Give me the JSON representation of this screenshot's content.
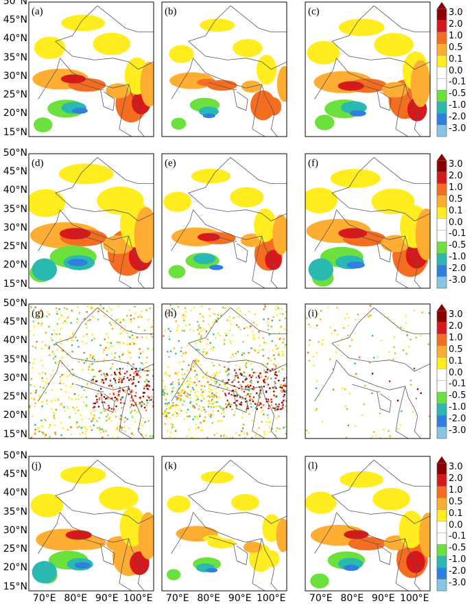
{
  "figure": {
    "y_tick_labels": [
      "50°N",
      "45°N",
      "40°N",
      "35°N",
      "30°N",
      "25°N",
      "20°N",
      "15°N"
    ],
    "x_tick_labels": [
      "70°E",
      "80°E",
      "90°E",
      "100°E"
    ],
    "colorbar_labels": [
      "3.0",
      "2.0",
      "1.0",
      "0.5",
      "0.1",
      "0.0",
      "-0.1",
      "-0.5",
      "-1.0",
      "-2.0",
      "-3.0"
    ],
    "colors": {
      "levels": [
        "#8b0000",
        "#d7191c",
        "#f46d20",
        "#fdae32",
        "#ffed20",
        "#ffffff",
        "#ffffff",
        "#6ce03c",
        "#2ab9b0",
        "#2f7fe0",
        "#86c5e6"
      ],
      "extend_top": "#8b0000",
      "country_border": "#555555",
      "panel_frame": "#000000"
    }
  },
  "chart_data": {
    "type": "heatmap",
    "rows": 4,
    "cols": 3,
    "x_range": [
      "65°E",
      "105°E"
    ],
    "y_range": [
      "14°N",
      "50°N"
    ],
    "x_ticks": [
      "70°E",
      "80°E",
      "90°E",
      "100°E"
    ],
    "y_ticks": [
      "15°N",
      "20°N",
      "25°N",
      "30°N",
      "35°N",
      "40°N",
      "45°N",
      "50°N"
    ],
    "colorbar": {
      "levels": [
        -3.0,
        -2.0,
        -1.0,
        -0.5,
        -0.1,
        0.0,
        0.1,
        0.5,
        1.0,
        2.0,
        3.0
      ],
      "labels": [
        "3.0",
        "2.0",
        "1.0",
        "0.5",
        "0.1",
        "0.0",
        "-0.1",
        "-0.5",
        "-1.0",
        "-2.0",
        "-3.0"
      ],
      "extend": "max"
    },
    "panels": [
      {
        "label": "(a)",
        "pattern": "smooth",
        "variant": 0
      },
      {
        "label": "(b)",
        "pattern": "smooth",
        "variant": 1
      },
      {
        "label": "(c)",
        "pattern": "smooth",
        "variant": 2
      },
      {
        "label": "(d)",
        "pattern": "smooth",
        "variant": 3
      },
      {
        "label": "(e)",
        "pattern": "smooth",
        "variant": 4
      },
      {
        "label": "(f)",
        "pattern": "smooth",
        "variant": 5
      },
      {
        "label": "(g)",
        "pattern": "noisy",
        "variant": 6
      },
      {
        "label": "(h)",
        "pattern": "noisy",
        "variant": 7
      },
      {
        "label": "(i)",
        "pattern": "noisy-sparse",
        "variant": 8
      },
      {
        "label": "(j)",
        "pattern": "smooth",
        "variant": 9
      },
      {
        "label": "(k)",
        "pattern": "smooth",
        "variant": 10
      },
      {
        "label": "(l)",
        "pattern": "smooth",
        "variant": 11
      }
    ]
  }
}
